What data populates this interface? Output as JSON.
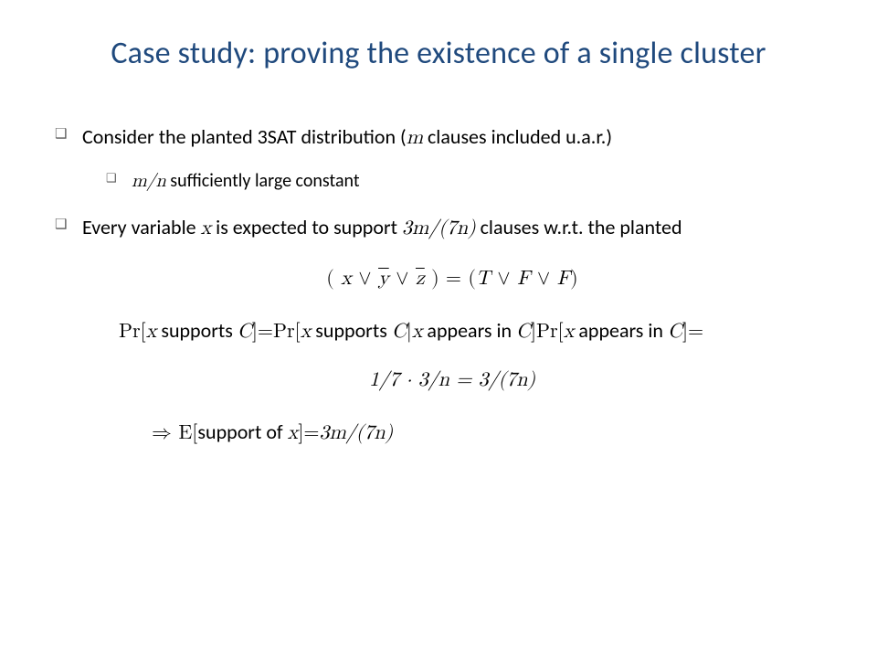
{
  "title": "Case study: proving the existence of a single cluster",
  "colors": {
    "title": "#1f497d",
    "body_text": "#000000",
    "bullet_marker": "#595959",
    "background": "#ffffff"
  },
  "typography": {
    "title_fontsize_pt": 26,
    "body_fontsize_pt": 17,
    "body_font": "Calibri",
    "math_font": "Cambria Math"
  },
  "bullets": {
    "b1_pre": "Consider the planted 3SAT distribution (",
    "b1_m": "m",
    "b1_post": " clauses included u.a.r.)",
    "b1a_mn": "m/n",
    "b1a_post": " sufficiently large constant",
    "b2_pre": "Every variable ",
    "b2_x": "x",
    "b2_mid": " is expected to support ",
    "b2_expr": "3m/(7n)",
    "b2_post": " clauses w.r.t. the planted"
  },
  "equations": {
    "clause_lp": "( ",
    "clause_x": "x",
    "clause_or1": " ∨ ",
    "clause_y": "y",
    "clause_or2": " ∨ ",
    "clause_z": "z",
    "clause_rp": " )  = (",
    "clause_T": "T",
    "clause_or3": " ∨ ",
    "clause_F1": "F",
    "clause_or4": " ∨ ",
    "clause_F2": "F",
    "clause_end": ")",
    "pr_line_1": "Pr[",
    "pr_x1": "x",
    "pr_line_2": " supports ",
    "pr_C1": "C",
    "pr_line_3": "]=Pr[",
    "pr_x2": "x",
    "pr_line_4": " supports ",
    "pr_C2": "C",
    "pr_bar": "|",
    "pr_x3": "x",
    "pr_line_5": " appears in ",
    "pr_C3": "C",
    "pr_line_6": "]Pr[",
    "pr_x4": "x",
    "pr_line_7": " appears in ",
    "pr_C4": "C",
    "pr_line_8": "]=",
    "calc": "1/7 · 3/n = 3/(7n)",
    "imp_arrow": "⇒",
    "imp_E": " E[",
    "imp_text": "support of ",
    "imp_x": "x",
    "imp_eq": "]=",
    "imp_rhs": "3m/(7n)"
  }
}
